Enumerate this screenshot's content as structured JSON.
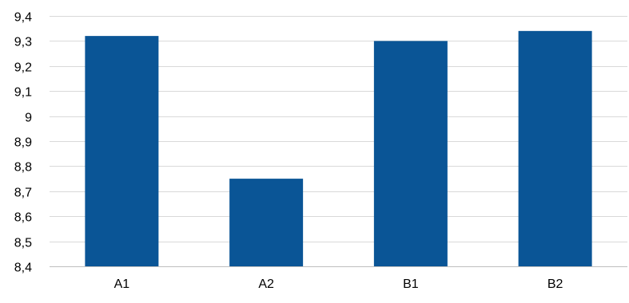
{
  "chart_data": {
    "type": "bar",
    "title": "",
    "xlabel": "",
    "ylabel": "",
    "categories": [
      "A1",
      "A2",
      "B1",
      "B2"
    ],
    "values": [
      9.32,
      8.75,
      9.3,
      9.34
    ],
    "ylim": [
      8.4,
      9.4
    ],
    "y_ticks": [
      8.4,
      8.5,
      8.6,
      8.7,
      8.8,
      8.9,
      9.0,
      9.1,
      9.2,
      9.3,
      9.4
    ],
    "y_tick_labels": [
      "8,4",
      "8,5",
      "8,6",
      "8,7",
      "8,8",
      "8,9",
      "9",
      "9,1",
      "9,2",
      "9,3",
      "9,4"
    ],
    "grid": true,
    "legend": "none",
    "bar_color": "#0a5596",
    "grid_color": "#d9d9d9"
  }
}
